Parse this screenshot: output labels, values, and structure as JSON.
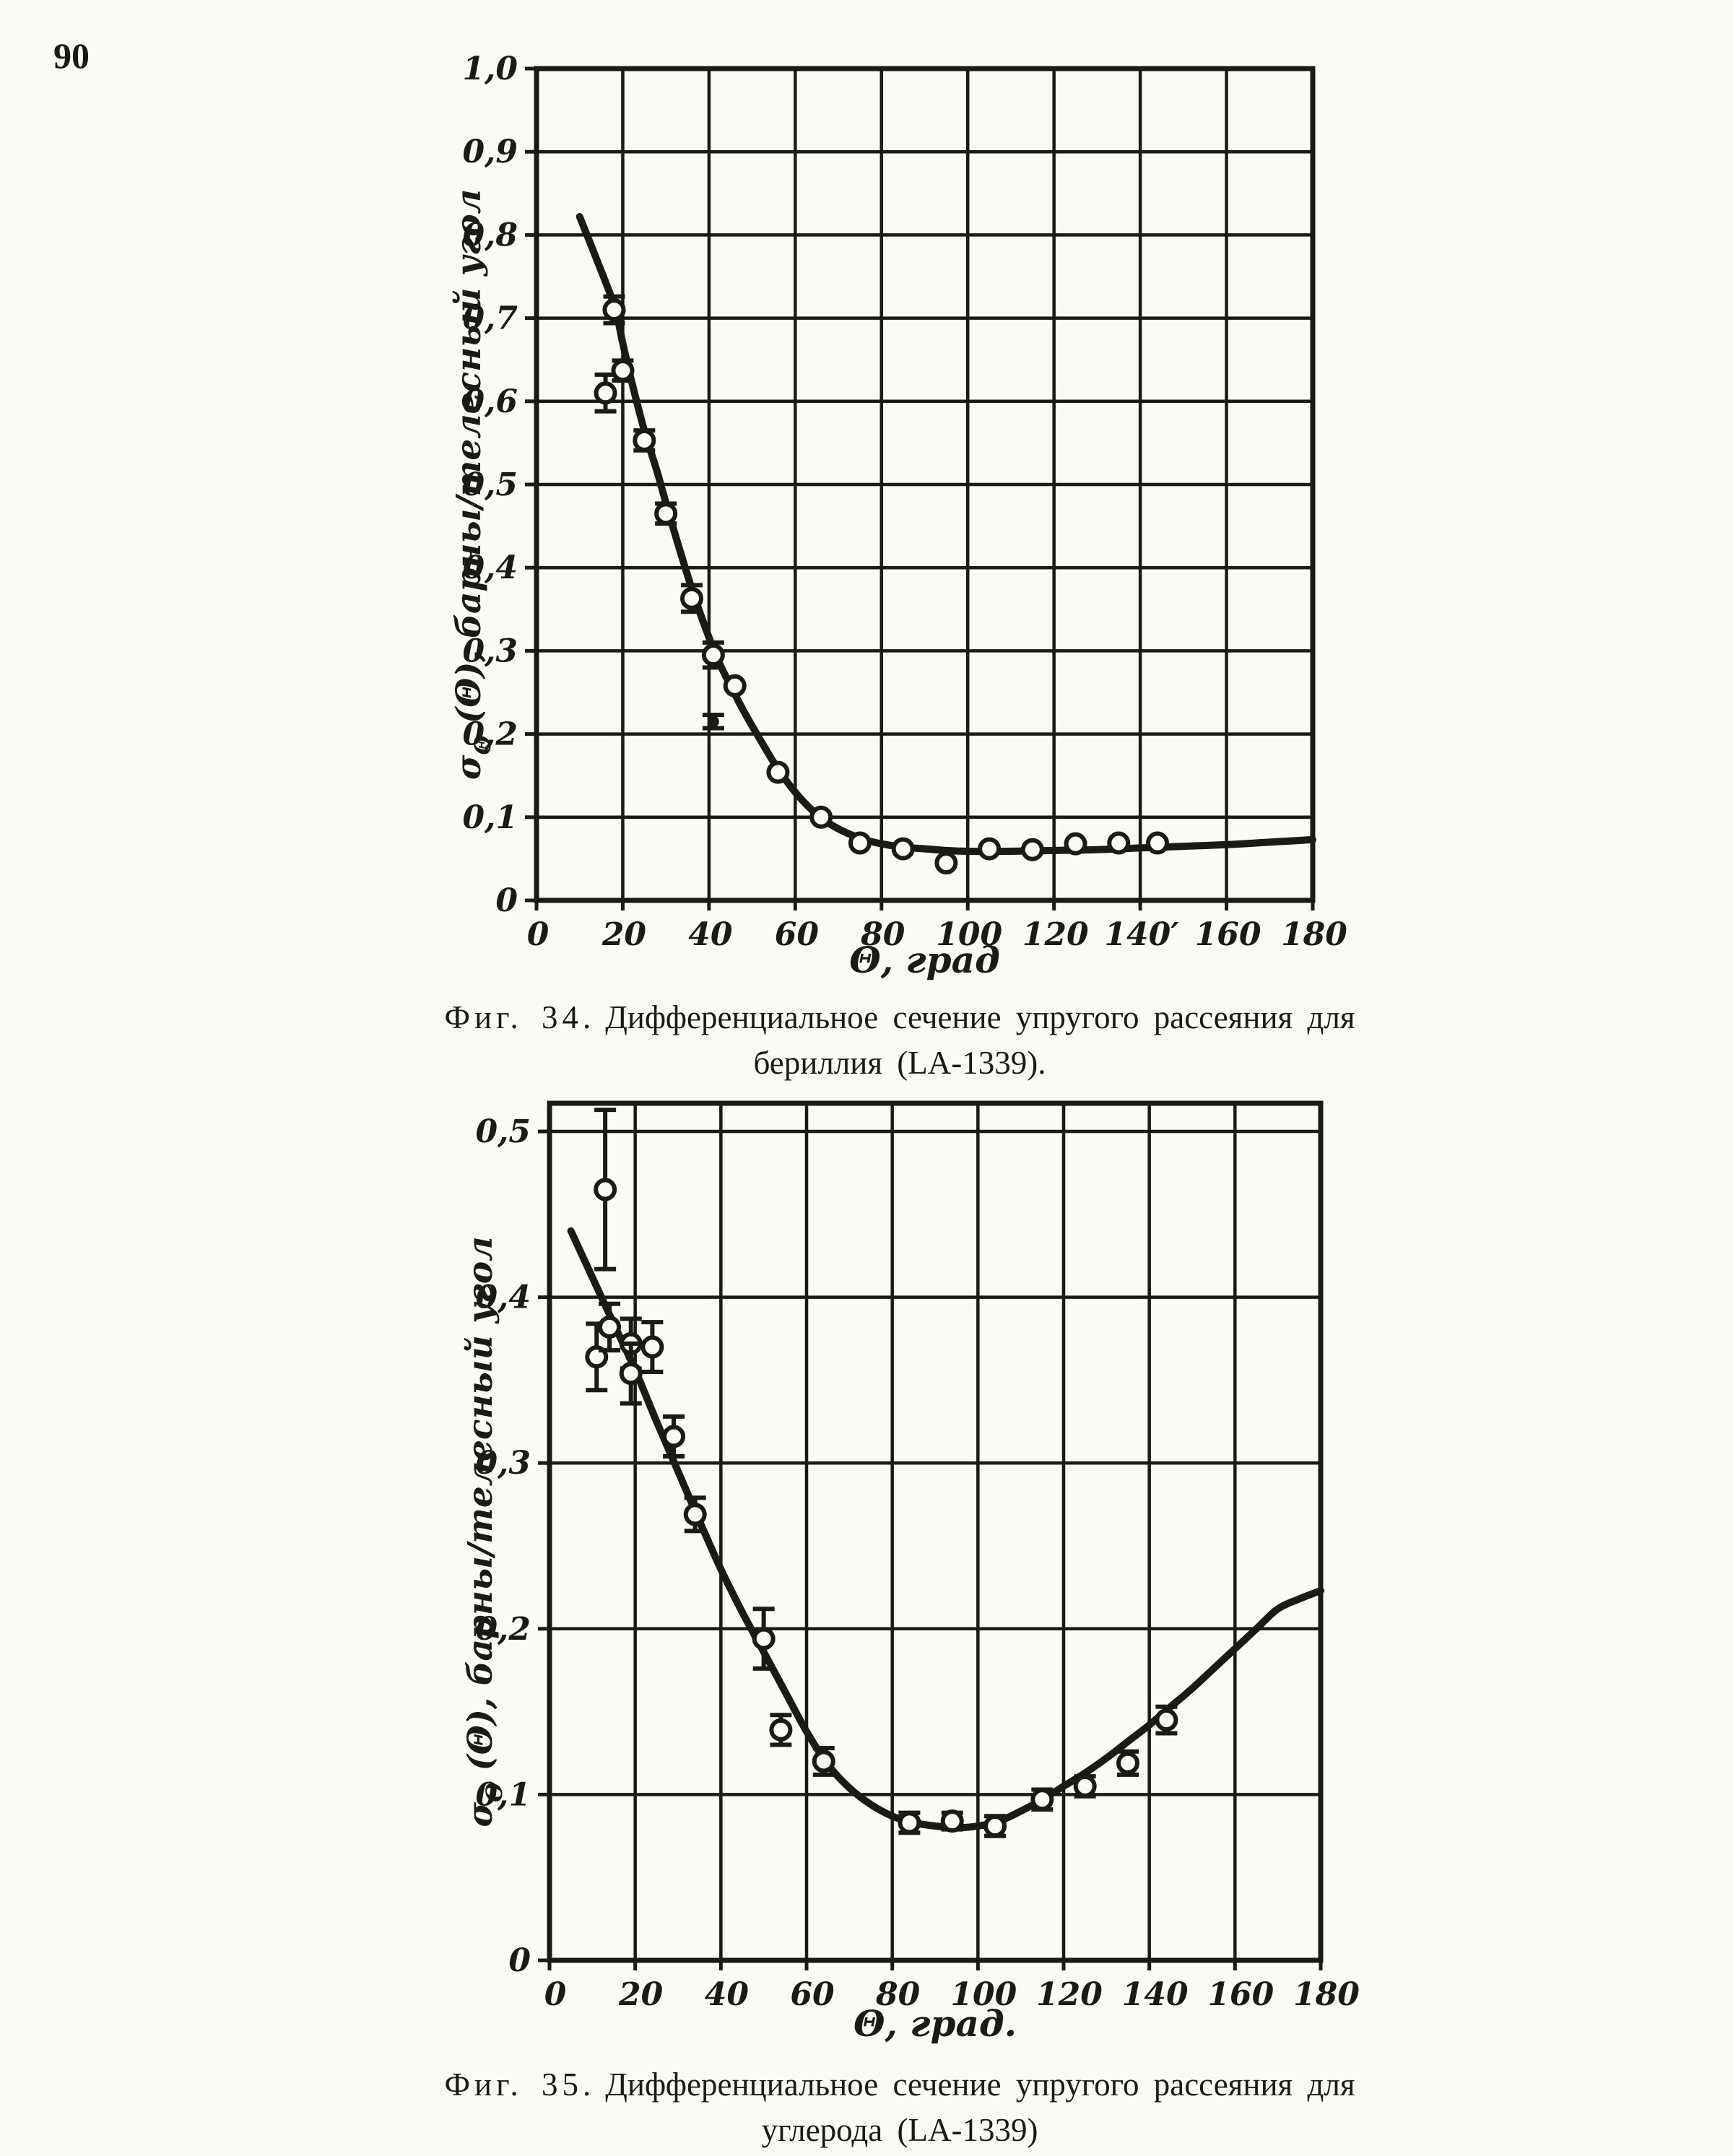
{
  "page": {
    "number": "90"
  },
  "colors": {
    "paper": "#fbfaf5",
    "ink": "#1b1a17"
  },
  "figures": [
    {
      "caption_label": "Фиг. 34.",
      "caption_line1": "Дифференциальное сечение упругого рассеяния для",
      "caption_line2": "бериллия (LA-1339)."
    },
    {
      "caption_label": "Фиг. 35.",
      "caption_line1": "Дифференциальное сечение упругого рассеяния для",
      "caption_line2": "углерода (LA-1339)"
    }
  ],
  "chart_data": [
    {
      "type": "line",
      "title": "Дифференциальное сечение упругого рассеяния для бериллия (LA-1339)",
      "xlabel": "Θ, град",
      "ylabel": "σΘ(Θ), барны/телесный угол",
      "ylabel_parts": [
        {
          "t": "σ"
        },
        {
          "t": "Θ",
          "sub": true
        },
        {
          "t": " (Θ), барны/телесный угол"
        }
      ],
      "xlim": [
        0,
        180
      ],
      "ylim": [
        0,
        1.0
      ],
      "grid": true,
      "legend_position": "none",
      "x_tick_values": [
        0,
        20,
        40,
        60,
        80,
        100,
        120,
        140,
        160,
        180
      ],
      "x_tick_labels": [
        "0",
        "20",
        "40",
        "60",
        "80",
        "100",
        "120",
        "140′",
        "160",
        "180"
      ],
      "y_tick_values": [
        0,
        0.1,
        0.2,
        0.3,
        0.4,
        0.5,
        0.6,
        0.7,
        0.8,
        0.9,
        1.0
      ],
      "y_tick_labels": [
        "0",
        "0,1",
        "0,2",
        "0,3",
        "0,4",
        "0,5",
        "0,6",
        "0,7",
        "0,8",
        "0,9",
        "1,0"
      ],
      "curve": [
        [
          10,
          0.822
        ],
        [
          14,
          0.77
        ],
        [
          18,
          0.715
        ],
        [
          20,
          0.67
        ],
        [
          22,
          0.625
        ],
        [
          25,
          0.565
        ],
        [
          28,
          0.515
        ],
        [
          30,
          0.478
        ],
        [
          33,
          0.425
        ],
        [
          36,
          0.375
        ],
        [
          39,
          0.33
        ],
        [
          42,
          0.29
        ],
        [
          45,
          0.258
        ],
        [
          48,
          0.228
        ],
        [
          52,
          0.192
        ],
        [
          56,
          0.158
        ],
        [
          60,
          0.13
        ],
        [
          64,
          0.108
        ],
        [
          68,
          0.092
        ],
        [
          72,
          0.081
        ],
        [
          76,
          0.073
        ],
        [
          80,
          0.068
        ],
        [
          85,
          0.064
        ],
        [
          90,
          0.062
        ],
        [
          95,
          0.06
        ],
        [
          100,
          0.059
        ],
        [
          110,
          0.059
        ],
        [
          120,
          0.06
        ],
        [
          130,
          0.061
        ],
        [
          140,
          0.063
        ],
        [
          150,
          0.065
        ],
        [
          160,
          0.067
        ],
        [
          170,
          0.07
        ],
        [
          180,
          0.073
        ]
      ],
      "points": [
        {
          "x": 16,
          "y": 0.61,
          "err": 0.022,
          "marker": "open"
        },
        {
          "x": 18,
          "y": 0.71,
          "err": 0.016,
          "marker": "open"
        },
        {
          "x": 20,
          "y": 0.637,
          "err": 0.012,
          "marker": "open"
        },
        {
          "x": 25,
          "y": 0.553,
          "err": 0.012,
          "marker": "open"
        },
        {
          "x": 30,
          "y": 0.465,
          "err": 0.012,
          "marker": "open"
        },
        {
          "x": 36,
          "y": 0.363,
          "err": 0.016,
          "marker": "open"
        },
        {
          "x": 41,
          "y": 0.295,
          "err": 0.015,
          "marker": "open"
        },
        {
          "x": 46,
          "y": 0.258,
          "err": 0,
          "marker": "open"
        },
        {
          "x": 41,
          "y": 0.215,
          "err": 0.008,
          "marker": "dot"
        },
        {
          "x": 56,
          "y": 0.154,
          "err": 0,
          "marker": "open"
        },
        {
          "x": 66,
          "y": 0.1,
          "err": 0,
          "marker": "open"
        },
        {
          "x": 75,
          "y": 0.069,
          "err": 0,
          "marker": "open"
        },
        {
          "x": 85,
          "y": 0.062,
          "err": 0,
          "marker": "open"
        },
        {
          "x": 95,
          "y": 0.045,
          "err": 0,
          "marker": "open"
        },
        {
          "x": 105,
          "y": 0.062,
          "err": 0,
          "marker": "open"
        },
        {
          "x": 115,
          "y": 0.061,
          "err": 0,
          "marker": "open"
        },
        {
          "x": 125,
          "y": 0.068,
          "err": 0,
          "marker": "open"
        },
        {
          "x": 135,
          "y": 0.069,
          "err": 0,
          "marker": "open"
        },
        {
          "x": 144,
          "y": 0.069,
          "err": 0,
          "marker": "open"
        }
      ]
    },
    {
      "type": "line",
      "title": "Дифференциальное сечение упругого рассеяния для углерода (LA-1339)",
      "xlabel": "Θ, град.",
      "ylabel": "σΘ(Θ), барны/телесный угол",
      "ylabel_parts": [
        {
          "t": "σ"
        },
        {
          "t": "Θ",
          "sub": true
        },
        {
          "t": " (Θ), барны/телесный угол"
        }
      ],
      "xlim": [
        0,
        180
      ],
      "ylim": [
        0,
        0.517
      ],
      "grid": true,
      "legend_position": "none",
      "x_tick_values": [
        0,
        20,
        40,
        60,
        80,
        100,
        120,
        140,
        160,
        180
      ],
      "x_tick_labels": [
        "0",
        "20",
        "40",
        "60",
        "80",
        "100",
        "120",
        "140",
        "160",
        "180"
      ],
      "y_tick_values": [
        0,
        0.1,
        0.2,
        0.3,
        0.4,
        0.5
      ],
      "y_tick_labels": [
        "0",
        "0,1",
        "0,2",
        "0,3",
        "0,4",
        "0,5"
      ],
      "curve": [
        [
          5,
          0.44
        ],
        [
          10,
          0.412
        ],
        [
          15,
          0.384
        ],
        [
          20,
          0.356
        ],
        [
          25,
          0.325
        ],
        [
          30,
          0.295
        ],
        [
          35,
          0.265
        ],
        [
          40,
          0.236
        ],
        [
          45,
          0.21
        ],
        [
          50,
          0.186
        ],
        [
          55,
          0.162
        ],
        [
          60,
          0.138
        ],
        [
          65,
          0.118
        ],
        [
          70,
          0.104
        ],
        [
          75,
          0.094
        ],
        [
          80,
          0.087
        ],
        [
          85,
          0.083
        ],
        [
          90,
          0.081
        ],
        [
          95,
          0.08
        ],
        [
          100,
          0.081
        ],
        [
          105,
          0.084
        ],
        [
          110,
          0.09
        ],
        [
          115,
          0.097
        ],
        [
          120,
          0.105
        ],
        [
          125,
          0.113
        ],
        [
          130,
          0.122
        ],
        [
          135,
          0.132
        ],
        [
          140,
          0.142
        ],
        [
          145,
          0.153
        ],
        [
          150,
          0.164
        ],
        [
          155,
          0.176
        ],
        [
          160,
          0.188
        ],
        [
          165,
          0.2
        ],
        [
          170,
          0.212
        ],
        [
          175,
          0.218
        ],
        [
          180,
          0.223
        ]
      ],
      "points": [
        {
          "x": 13,
          "y": 0.465,
          "err": 0.048,
          "marker": "open"
        },
        {
          "x": 11,
          "y": 0.364,
          "err": 0.02,
          "marker": "open"
        },
        {
          "x": 14,
          "y": 0.382,
          "err": 0.014,
          "marker": "open"
        },
        {
          "x": 19,
          "y": 0.372,
          "err": 0.015,
          "marker": "open"
        },
        {
          "x": 19,
          "y": 0.354,
          "err": 0.018,
          "marker": "open"
        },
        {
          "x": 24,
          "y": 0.37,
          "err": 0.015,
          "marker": "open"
        },
        {
          "x": 29,
          "y": 0.316,
          "err": 0.012,
          "marker": "open"
        },
        {
          "x": 34,
          "y": 0.269,
          "err": 0.01,
          "marker": "open"
        },
        {
          "x": 50,
          "y": 0.194,
          "err": 0.018,
          "marker": "open"
        },
        {
          "x": 54,
          "y": 0.139,
          "err": 0.009,
          "marker": "open"
        },
        {
          "x": 64,
          "y": 0.12,
          "err": 0.008,
          "marker": "open"
        },
        {
          "x": 84,
          "y": 0.083,
          "err": 0.006,
          "marker": "open"
        },
        {
          "x": 94,
          "y": 0.084,
          "err": 0.005,
          "marker": "open"
        },
        {
          "x": 104,
          "y": 0.081,
          "err": 0.006,
          "marker": "open"
        },
        {
          "x": 115,
          "y": 0.097,
          "err": 0.006,
          "marker": "open"
        },
        {
          "x": 125,
          "y": 0.105,
          "err": 0.006,
          "marker": "open"
        },
        {
          "x": 135,
          "y": 0.119,
          "err": 0.007,
          "marker": "open"
        },
        {
          "x": 144,
          "y": 0.145,
          "err": 0.008,
          "marker": "open"
        }
      ]
    }
  ]
}
